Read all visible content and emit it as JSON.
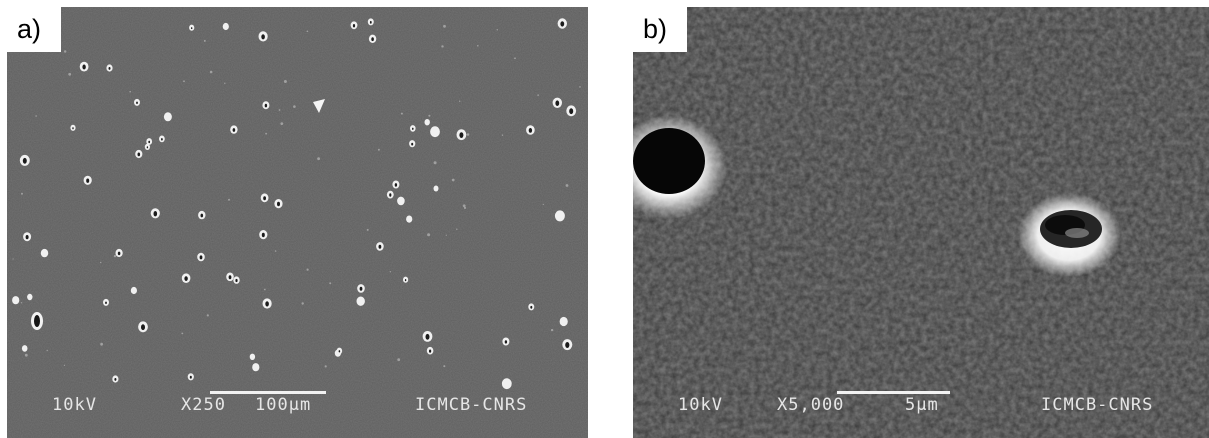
{
  "panels": [
    {
      "label": "a)",
      "voltage": "10kV",
      "magnification": "X250",
      "scale": "100µm",
      "lab": "ICMCB-CNRS"
    },
    {
      "label": "b)",
      "voltage": "10kV",
      "magnification": "X5,000",
      "scale": "5µm",
      "lab": "ICMCB-CNRS"
    }
  ]
}
